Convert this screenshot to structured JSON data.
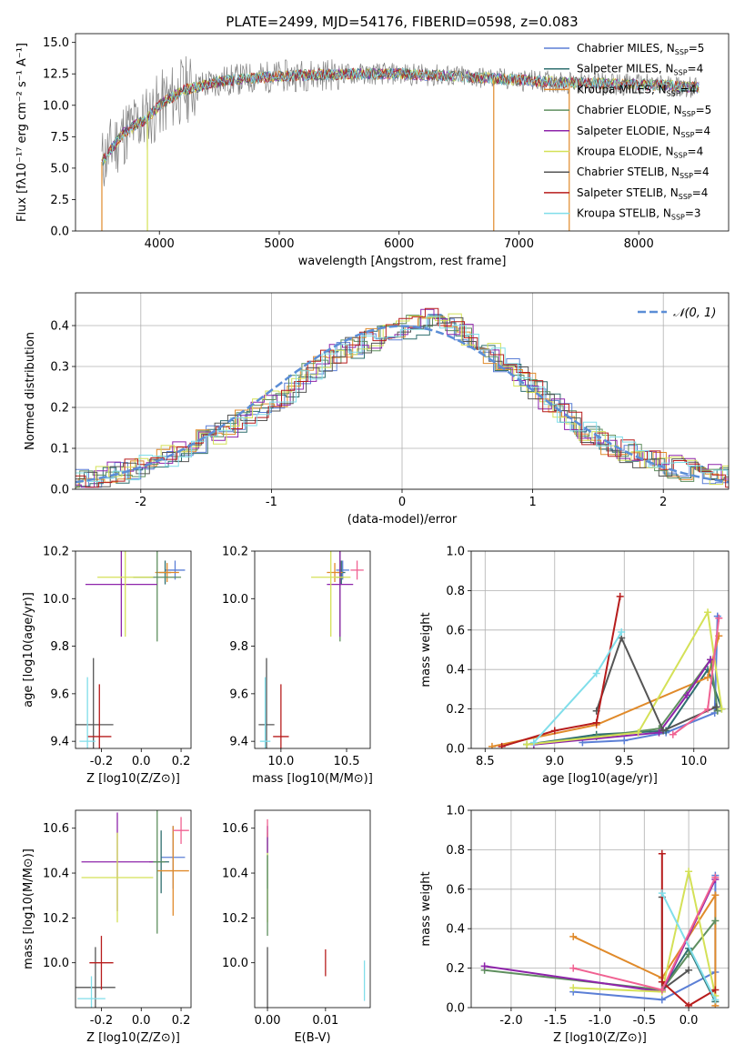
{
  "chart_data": [
    {
      "id": "spectrum",
      "type": "line",
      "title": "PLATE=2499, MJD=54176, FIBERID=0598, z=0.083",
      "xlabel": "wavelength [Angstrom, rest frame]",
      "ylabel": "Flux [fλ10⁻¹⁷ erg cm⁻² s⁻¹ A⁻¹]",
      "xlim": [
        3300,
        8750
      ],
      "ylim": [
        0,
        15.7
      ],
      "xticks": [
        4000,
        5000,
        6000,
        7000,
        8000
      ],
      "yticks": [
        0.0,
        2.5,
        5.0,
        7.5,
        10.0,
        12.5,
        15.0
      ],
      "legend_position": "upper-right",
      "observed_color": "#808080",
      "model_points": {
        "x": [
          3520,
          3700,
          3900,
          4000,
          4200,
          4500,
          4800,
          5200,
          5600,
          6000,
          6500,
          7000,
          7400,
          7800,
          8200,
          8500
        ],
        "y": [
          5.5,
          7.8,
          9.0,
          10.0,
          11.2,
          11.9,
          12.2,
          12.4,
          12.5,
          12.5,
          12.3,
          12.0,
          11.8,
          11.7,
          11.6,
          11.4
        ]
      },
      "series": [
        {
          "name": "Chabrier MILES, N_SSP=5",
          "label_main": "Chabrier MILES, N",
          "label_sub": "SSP",
          "label_end": "=5",
          "color": "#5b7fd6"
        },
        {
          "name": "Salpeter MILES, N_SSP=4",
          "label_main": "Salpeter MILES, N",
          "label_sub": "SSP",
          "label_end": "=4",
          "color": "#2f6f6f"
        },
        {
          "name": "Kroupa MILES, N_SSP=4",
          "label_main": "Kroupa MILES, N",
          "label_sub": "SSP",
          "label_end": "=4",
          "color": "#e08a2a"
        },
        {
          "name": "Chabrier ELODIE, N_SSP=5",
          "label_main": "Chabrier ELODIE, N",
          "label_sub": "SSP",
          "label_end": "=5",
          "color": "#5f8f5f"
        },
        {
          "name": "Salpeter ELODIE, N_SSP=4",
          "label_main": "Salpeter ELODIE, N",
          "label_sub": "SSP",
          "label_end": "=4",
          "color": "#8e24aa"
        },
        {
          "name": "Kroupa ELODIE, N_SSP=4",
          "label_main": "Kroupa ELODIE, N",
          "label_sub": "SSP",
          "label_end": "=4",
          "color": "#d4e157"
        },
        {
          "name": "Chabrier STELIB, N_SSP=4",
          "label_main": "Chabrier STELIB, N",
          "label_sub": "SSP",
          "label_end": "=4",
          "color": "#555555"
        },
        {
          "name": "Salpeter STELIB, N_SSP=4",
          "label_main": "Salpeter STELIB, N",
          "label_sub": "SSP",
          "label_end": "=4",
          "color": "#b71c1c"
        },
        {
          "name": "Kroupa STELIB, N_SSP=3",
          "label_main": "Kroupa STELIB, N",
          "label_sub": "SSP",
          "label_end": "=3",
          "color": "#80deea"
        }
      ]
    },
    {
      "id": "residuals",
      "type": "histogram",
      "xlabel": "(data-model)/error",
      "ylabel": "Normed distribution",
      "xlim": [
        -2.5,
        2.5
      ],
      "ylim": [
        0,
        0.48
      ],
      "xticks": [
        -2,
        -1,
        0,
        1,
        2
      ],
      "yticks": [
        0.0,
        0.1,
        0.2,
        0.3,
        0.4
      ],
      "grid": true,
      "legend_position": "upper-right",
      "reference_curve": {
        "name": "N(0,1)",
        "label": "𝒩(0, 1)",
        "color": "#5b8dd6"
      },
      "bin_edges_range": [
        -2.6,
        2.6
      ],
      "bin_width": 0.1,
      "envelope": {
        "x": [
          -2.5,
          -2.0,
          -1.5,
          -1.0,
          -0.5,
          0.0,
          0.3,
          0.5,
          1.0,
          1.5,
          2.0,
          2.5
        ],
        "y": [
          0.02,
          0.05,
          0.12,
          0.21,
          0.33,
          0.39,
          0.42,
          0.38,
          0.25,
          0.12,
          0.06,
          0.03
        ]
      }
    },
    {
      "id": "age-vs-Z",
      "type": "errorbar",
      "xlabel": "Z [log10(Z/Z⊙)]",
      "ylabel": "age  [log10(age/yr)]",
      "xlim": [
        -0.33,
        0.25
      ],
      "ylim": [
        9.37,
        10.2
      ],
      "xticks": [
        -0.2,
        0.0,
        0.2
      ],
      "yticks": [
        9.4,
        9.6,
        9.8,
        10.0,
        10.2
      ],
      "points": [
        {
          "series": "Chabrier MILES",
          "x": 0.17,
          "y": 10.12,
          "xerr": 0.05,
          "yerr": 0.04,
          "color": "#5b7fd6"
        },
        {
          "series": "Salpeter MILES",
          "x": 0.12,
          "y": 10.11,
          "xerr": 0.03,
          "yerr": 0.05,
          "color": "#2f6f6f"
        },
        {
          "series": "Kroupa MILES",
          "x": 0.13,
          "y": 10.11,
          "xerr": 0.06,
          "yerr": 0.04,
          "color": "#e08a2a"
        },
        {
          "series": "Chabrier ELODIE",
          "x": 0.08,
          "y": 10.09,
          "xerr": 0.12,
          "yerr": 0.27,
          "color": "#5f8f5f"
        },
        {
          "series": "Salpeter ELODIE",
          "x": -0.1,
          "y": 10.06,
          "xerr": 0.18,
          "yerr": 0.22,
          "color": "#8e24aa"
        },
        {
          "series": "Kroupa ELODIE",
          "x": -0.08,
          "y": 10.09,
          "xerr": 0.14,
          "yerr": 0.25,
          "color": "#d4e157"
        },
        {
          "series": "Chabrier STELIB",
          "x": -0.24,
          "y": 9.47,
          "xerr": 0.1,
          "yerr": 0.28,
          "color": "#555555"
        },
        {
          "series": "Salpeter STELIB",
          "x": -0.21,
          "y": 9.42,
          "xerr": 0.06,
          "yerr": 0.22,
          "color": "#b71c1c"
        },
        {
          "series": "Kroupa STELIB",
          "x": -0.27,
          "y": 9.4,
          "xerr": 0.04,
          "yerr": 0.27,
          "color": "#80deea"
        }
      ]
    },
    {
      "id": "age-vs-mass",
      "type": "errorbar",
      "xlabel": "mass [log10(M/M⊙)]",
      "ylabel": "",
      "xlim": [
        9.8,
        10.68
      ],
      "ylim": [
        9.37,
        10.2
      ],
      "xticks": [
        10.0,
        10.5
      ],
      "yticks": [
        9.4,
        9.6,
        9.8,
        10.0,
        10.2
      ],
      "points": [
        {
          "series": "Chabrier MILES",
          "x": 10.47,
          "y": 10.12,
          "xerr": 0.05,
          "yerr": 0.04,
          "color": "#5b7fd6"
        },
        {
          "series": "Salpeter MILES",
          "x": 10.46,
          "y": 10.11,
          "xerr": 0.03,
          "yerr": 0.05,
          "color": "#2f6f6f"
        },
        {
          "series": "Kroupa MILES",
          "x": 10.41,
          "y": 10.11,
          "xerr": 0.06,
          "yerr": 0.04,
          "color": "#e08a2a"
        },
        {
          "series": "Chabrier ELODIE",
          "x": 10.45,
          "y": 10.09,
          "xerr": 0.03,
          "yerr": 0.27,
          "color": "#5f8f5f"
        },
        {
          "series": "Salpeter ELODIE",
          "x": 10.45,
          "y": 10.06,
          "xerr": 0.1,
          "yerr": 0.22,
          "color": "#8e24aa"
        },
        {
          "series": "Kroupa ELODIE",
          "x": 10.38,
          "y": 10.09,
          "xerr": 0.15,
          "yerr": 0.25,
          "color": "#d4e157"
        },
        {
          "series": "Chabrier STELIB",
          "x": 9.89,
          "y": 9.47,
          "xerr": 0.06,
          "yerr": 0.28,
          "color": "#555555"
        },
        {
          "series": "Salpeter STELIB",
          "x": 10.0,
          "y": 9.42,
          "xerr": 0.06,
          "yerr": 0.22,
          "color": "#b71c1c"
        },
        {
          "series": "Kroupa STELIB",
          "x": 9.88,
          "y": 9.4,
          "xerr": 0.04,
          "yerr": 0.27,
          "color": "#80deea"
        },
        {
          "series": "extra",
          "x": 10.58,
          "y": 10.12,
          "xerr": 0.05,
          "yerr": 0.04,
          "color": "#f06292"
        }
      ]
    },
    {
      "id": "massweight-vs-age",
      "type": "line",
      "xlabel": "age  [log10(age/yr)]",
      "ylabel": "mass weight",
      "xlim": [
        8.4,
        10.25
      ],
      "ylim": [
        0,
        1.0
      ],
      "xticks": [
        8.5,
        9.0,
        9.5,
        10.0
      ],
      "yticks": [
        0.0,
        0.2,
        0.4,
        0.6,
        0.8,
        1.0
      ],
      "grid": true,
      "series": [
        {
          "name": "Chabrier MILES",
          "color": "#5b7fd6",
          "x": [
            9.2,
            9.5,
            9.8,
            10.15,
            10.17
          ],
          "y": [
            0.03,
            0.04,
            0.08,
            0.18,
            0.67
          ]
        },
        {
          "name": "Salpeter MILES",
          "color": "#2f6f6f",
          "x": [
            8.8,
            9.3,
            9.8,
            10.1,
            10.2
          ],
          "y": [
            0.02,
            0.07,
            0.09,
            0.4,
            0.2
          ]
        },
        {
          "name": "Kroupa MILES",
          "color": "#e08a2a",
          "x": [
            8.55,
            9.3,
            10.1,
            10.18
          ],
          "y": [
            0.01,
            0.12,
            0.36,
            0.57
          ]
        },
        {
          "name": "Chabrier ELODIE",
          "color": "#5f8f5f",
          "x": [
            8.8,
            9.3,
            9.75,
            10.12,
            10.17
          ],
          "y": [
            0.02,
            0.06,
            0.1,
            0.45,
            0.19
          ]
        },
        {
          "name": "Salpeter ELODIE",
          "color": "#8e24aa",
          "x": [
            8.85,
            9.75,
            9.95,
            10.12
          ],
          "y": [
            0.02,
            0.08,
            0.27,
            0.45
          ]
        },
        {
          "name": "Kroupa ELODIE",
          "color": "#d4e157",
          "x": [
            8.8,
            9.6,
            10.1,
            10.2
          ],
          "y": [
            0.02,
            0.08,
            0.69,
            0.2
          ]
        },
        {
          "name": "Chabrier STELIB",
          "color": "#555555",
          "x": [
            9.3,
            9.48,
            9.78,
            10.16
          ],
          "y": [
            0.19,
            0.56,
            0.09,
            0.21
          ]
        },
        {
          "name": "Salpeter STELIB",
          "color": "#b71c1c",
          "x": [
            8.62,
            9.0,
            9.3,
            9.47
          ],
          "y": [
            0.01,
            0.09,
            0.13,
            0.77
          ]
        },
        {
          "name": "Kroupa STELIB",
          "color": "#80deea",
          "x": [
            8.85,
            9.3,
            9.48
          ],
          "y": [
            0.03,
            0.38,
            0.59
          ]
        },
        {
          "name": "extra",
          "color": "#f06292",
          "x": [
            9.85,
            10.1,
            10.18
          ],
          "y": [
            0.07,
            0.2,
            0.66
          ]
        }
      ]
    },
    {
      "id": "mass-vs-Z",
      "type": "errorbar",
      "xlabel": "Z [log10(Z/Z⊙)]",
      "ylabel": "mass [log10(M/M⊙)]",
      "xlim": [
        -0.33,
        0.25
      ],
      "ylim": [
        9.8,
        10.68
      ],
      "xticks": [
        -0.2,
        0.0,
        0.2
      ],
      "yticks": [
        10.0,
        10.2,
        10.4,
        10.6
      ],
      "points": [
        {
          "series": "Chabrier MILES",
          "x": 0.16,
          "y": 10.47,
          "xerr": 0.06,
          "yerr": 0.14,
          "color": "#5b7fd6"
        },
        {
          "series": "Salpeter MILES",
          "x": 0.1,
          "y": 10.45,
          "xerr": 0.04,
          "yerr": 0.14,
          "color": "#2f6f6f"
        },
        {
          "series": "Kroupa MILES",
          "x": 0.16,
          "y": 10.41,
          "xerr": 0.08,
          "yerr": 0.2,
          "color": "#e08a2a"
        },
        {
          "series": "Chabrier ELODIE",
          "x": 0.08,
          "y": 10.45,
          "xerr": 0.04,
          "yerr": 0.32,
          "color": "#5f8f5f"
        },
        {
          "series": "Salpeter ELODIE",
          "x": -0.12,
          "y": 10.45,
          "xerr": 0.18,
          "yerr": 0.22,
          "color": "#8e24aa"
        },
        {
          "series": "Kroupa ELODIE",
          "x": -0.12,
          "y": 10.38,
          "xerr": 0.18,
          "yerr": 0.2,
          "color": "#d4e157"
        },
        {
          "series": "Chabrier STELIB",
          "x": -0.23,
          "y": 9.89,
          "xerr": 0.1,
          "yerr": 0.18,
          "color": "#555555"
        },
        {
          "series": "Salpeter STELIB",
          "x": -0.2,
          "y": 10.0,
          "xerr": 0.06,
          "yerr": 0.12,
          "color": "#b71c1c"
        },
        {
          "series": "Kroupa STELIB",
          "x": -0.25,
          "y": 9.84,
          "xerr": 0.07,
          "yerr": 0.1,
          "color": "#80deea"
        },
        {
          "series": "extra",
          "x": 0.2,
          "y": 10.59,
          "xerr": 0.04,
          "yerr": 0.06,
          "color": "#f06292"
        }
      ]
    },
    {
      "id": "mass-vs-ebv",
      "type": "errorbar",
      "xlabel": "E(B-V)",
      "ylabel": "",
      "xlim": [
        -0.0022,
        0.0177
      ],
      "ylim": [
        9.8,
        10.68
      ],
      "xticks": [
        0.0,
        0.01
      ],
      "xtick_labels": [
        "0.00",
        "0.01"
      ],
      "yticks": [
        10.0,
        10.2,
        10.4,
        10.6
      ],
      "points": [
        {
          "series": "Chabrier MILES",
          "x": 0.0,
          "y": 10.47,
          "xerr": 0.0,
          "yerr": 0.14,
          "color": "#5b7fd6"
        },
        {
          "series": "Kroupa ELODIE",
          "x": 0.0,
          "y": 10.38,
          "xerr": 0.0,
          "yerr": 0.2,
          "color": "#d4e157"
        },
        {
          "series": "Salpeter ELODIE",
          "x": 0.0,
          "y": 10.55,
          "xerr": 0.0,
          "yerr": 0.06,
          "color": "#8e24aa"
        },
        {
          "series": "Chabrier ELODIE",
          "x": 0.0,
          "y": 10.3,
          "xerr": 0.0,
          "yerr": 0.18,
          "color": "#5f8f5f"
        },
        {
          "series": "Chabrier STELIB",
          "x": 0.0,
          "y": 9.89,
          "xerr": 0.0,
          "yerr": 0.18,
          "color": "#555555"
        },
        {
          "series": "Salpeter STELIB",
          "x": 0.01,
          "y": 10.0,
          "xerr": 0.0,
          "yerr": 0.06,
          "color": "#b71c1c"
        },
        {
          "series": "Kroupa STELIB",
          "x": 0.0167,
          "y": 9.92,
          "xerr": 0.0,
          "yerr": 0.09,
          "color": "#80deea"
        },
        {
          "series": "extra",
          "x": 0.0,
          "y": 10.6,
          "xerr": 0.0,
          "yerr": 0.04,
          "color": "#f06292"
        }
      ]
    },
    {
      "id": "massweight-vs-Z",
      "type": "line",
      "xlabel": "Z [log10(Z/Z⊙)]",
      "ylabel": "mass weight",
      "xlim": [
        -2.45,
        0.45
      ],
      "ylim": [
        0,
        1.0
      ],
      "xticks": [
        -2.0,
        -1.5,
        -1.0,
        -0.5,
        0.0
      ],
      "yticks": [
        0.0,
        0.2,
        0.4,
        0.6,
        0.8,
        1.0
      ],
      "grid": true,
      "series": [
        {
          "name": "Chabrier MILES",
          "color": "#5b7fd6",
          "x": [
            -1.3,
            -0.3,
            0.3,
            0.3
          ],
          "y": [
            0.08,
            0.04,
            0.18,
            0.67
          ]
        },
        {
          "name": "Salpeter MILES",
          "color": "#2f6f6f",
          "x": [
            -0.3,
            0.0,
            0.3
          ],
          "y": [
            0.09,
            0.3,
            0.03
          ]
        },
        {
          "name": "Kroupa MILES",
          "color": "#e08a2a",
          "x": [
            -1.3,
            -0.3,
            0.3,
            0.3
          ],
          "y": [
            0.36,
            0.15,
            0.57,
            0.01
          ]
        },
        {
          "name": "Chabrier ELODIE",
          "color": "#5f8f5f",
          "x": [
            -2.3,
            -0.3,
            0.0,
            0.3
          ],
          "y": [
            0.19,
            0.09,
            0.27,
            0.44
          ]
        },
        {
          "name": "Salpeter ELODIE",
          "color": "#8e24aa",
          "x": [
            -2.3,
            -0.3,
            0.3
          ],
          "y": [
            0.21,
            0.08,
            0.65
          ]
        },
        {
          "name": "Kroupa ELODIE",
          "color": "#d4e157",
          "x": [
            -1.3,
            -0.3,
            0.0,
            0.3
          ],
          "y": [
            0.1,
            0.08,
            0.69,
            0.06
          ]
        },
        {
          "name": "Chabrier STELIB",
          "color": "#555555",
          "x": [
            -0.3,
            -0.3,
            0.0
          ],
          "y": [
            0.56,
            0.09,
            0.19
          ]
        },
        {
          "name": "Salpeter STELIB",
          "color": "#b71c1c",
          "x": [
            -0.3,
            -0.3,
            0.0,
            0.3
          ],
          "y": [
            0.78,
            0.13,
            0.01,
            0.09
          ]
        },
        {
          "name": "Kroupa STELIB",
          "color": "#80deea",
          "x": [
            -0.3,
            0.3
          ],
          "y": [
            0.58,
            0.04
          ]
        },
        {
          "name": "extra",
          "color": "#f06292",
          "x": [
            -1.3,
            -0.3,
            0.3
          ],
          "y": [
            0.2,
            0.09,
            0.66
          ]
        }
      ]
    }
  ]
}
